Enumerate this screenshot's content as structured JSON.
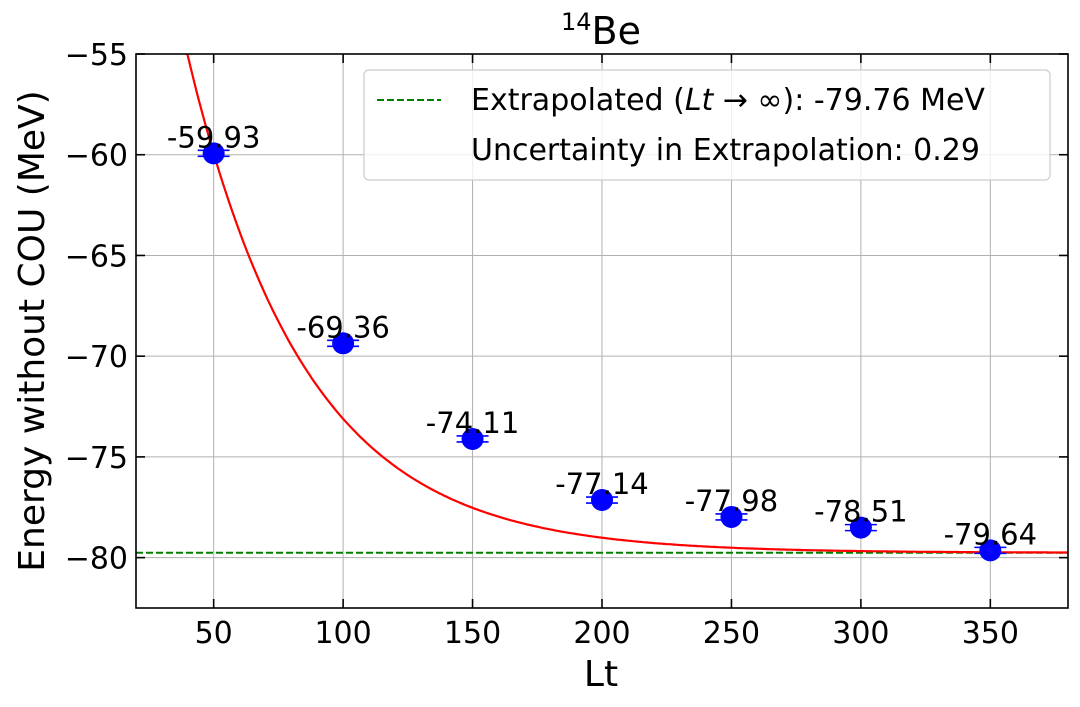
{
  "chart_data": {
    "type": "scatter",
    "title_sup": "14",
    "title_main": "Be",
    "xlabel": "Lt",
    "ylabel": "Energy without COU (MeV)",
    "xlim": [
      20,
      380
    ],
    "ylim": [
      -82.5,
      -55
    ],
    "x_ticks": [
      50,
      100,
      150,
      200,
      250,
      300,
      350
    ],
    "y_ticks": [
      -55,
      -60,
      -65,
      -70,
      -75,
      -80
    ],
    "y_tick_labels": [
      "−55",
      "−60",
      "−65",
      "−70",
      "−75",
      "−80"
    ],
    "grid": true,
    "points": {
      "x": [
        50,
        100,
        150,
        200,
        250,
        300,
        350
      ],
      "y": [
        -59.93,
        -69.36,
        -74.11,
        -77.14,
        -77.98,
        -78.51,
        -79.64
      ],
      "labels": [
        "-59.93",
        "-69.36",
        "-74.11",
        "-77.14",
        "-77.98",
        "-78.51",
        "-79.64"
      ],
      "color": "#0000ff"
    },
    "fit_curve": {
      "color": "#ff0000",
      "asymptote": -79.76,
      "amplitude": -34.0,
      "decay": 0.02184
    },
    "extrapolated": {
      "value": -79.76,
      "color": "#008000",
      "style": "dashed"
    },
    "legend": {
      "placement": "upper right",
      "entries": [
        {
          "text_pre": "Extrapolated (",
          "text_math": "Lt",
          "text_arrow": " → ∞",
          "text_post": "): -79.76 MeV"
        },
        {
          "text": "Uncertainty in Extrapolation: 0.29"
        }
      ]
    }
  }
}
